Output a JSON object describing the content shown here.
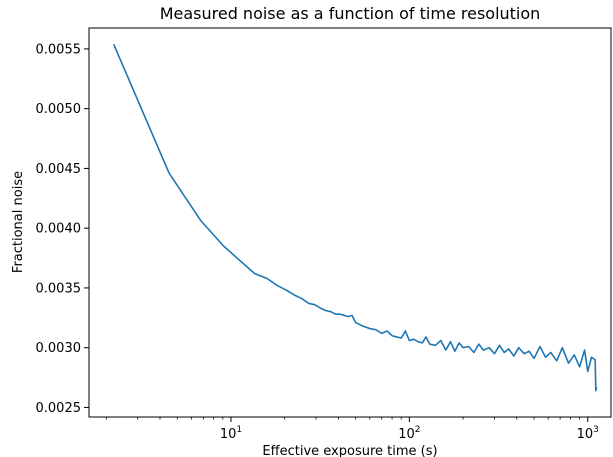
{
  "chart_data": {
    "type": "line",
    "title": "Measured noise as a function of time resolution",
    "xlabel": "Effective exposure time (s)",
    "ylabel": "Fractional noise",
    "xscale": "log",
    "xlim": [
      1.6,
      1350
    ],
    "ylim": [
      0.00242,
      0.005675
    ],
    "grid": false,
    "legend": "none",
    "x_ticks": [
      {
        "value": 10,
        "base": "10",
        "exp": "1"
      },
      {
        "value": 100,
        "base": "10",
        "exp": "2"
      },
      {
        "value": 1000,
        "base": "10",
        "exp": "3"
      }
    ],
    "y_ticks": [
      {
        "value": 0.0025,
        "label": "0.0025"
      },
      {
        "value": 0.003,
        "label": "0.0030"
      },
      {
        "value": 0.0035,
        "label": "0.0035"
      },
      {
        "value": 0.004,
        "label": "0.0040"
      },
      {
        "value": 0.0045,
        "label": "0.0045"
      },
      {
        "value": 0.005,
        "label": "0.0050"
      },
      {
        "value": 0.0055,
        "label": "0.0055"
      }
    ],
    "series": [
      {
        "color": "#1f77b4",
        "x": [
          2.2,
          4.5,
          6.8,
          9.1,
          11.4,
          13.6,
          15.9,
          18.2,
          20.5,
          22.7,
          25.0,
          27.3,
          29.5,
          31.8,
          34.1,
          36.4,
          38.6,
          40.9,
          43.2,
          45.5,
          47.7,
          50.0,
          55.0,
          60.0,
          65.0,
          70.0,
          75.0,
          80.0,
          85.0,
          90.0,
          95.0,
          100.0,
          106.0,
          112.0,
          118.0,
          124.0,
          130.0,
          140.0,
          150.0,
          160.0,
          170.0,
          180.0,
          190.0,
          200.0,
          215.0,
          230.0,
          245.0,
          260.0,
          280.0,
          300.0,
          320.0,
          340.0,
          360.0,
          385.0,
          410.0,
          440.0,
          470.0,
          500.0,
          540.0,
          580.0,
          620.0,
          670.0,
          720.0,
          780.0,
          840.0,
          900.0,
          960.0,
          1000.0,
          1050.0,
          1100.0,
          1110.0,
          1120.0
        ],
        "y": [
          0.00554,
          0.00446,
          0.00406,
          0.00385,
          0.00372,
          0.00362,
          0.00358,
          0.00352,
          0.00348,
          0.00344,
          0.00341,
          0.00337,
          0.00336,
          0.00333,
          0.00331,
          0.0033,
          0.00328,
          0.00328,
          0.00327,
          0.00326,
          0.00327,
          0.00321,
          0.00318,
          0.00316,
          0.00315,
          0.00312,
          0.00314,
          0.0031,
          0.00309,
          0.00308,
          0.00314,
          0.00306,
          0.00307,
          0.00305,
          0.00304,
          0.00309,
          0.00303,
          0.00302,
          0.00306,
          0.00298,
          0.00305,
          0.00297,
          0.00304,
          0.003,
          0.00301,
          0.00296,
          0.00303,
          0.00298,
          0.003,
          0.00295,
          0.00302,
          0.00296,
          0.00299,
          0.00293,
          0.003,
          0.00295,
          0.00297,
          0.00291,
          0.00301,
          0.00292,
          0.00296,
          0.00289,
          0.003,
          0.00287,
          0.00294,
          0.00284,
          0.00298,
          0.0028,
          0.00292,
          0.0029,
          0.00264,
          0.00267
        ]
      }
    ]
  }
}
